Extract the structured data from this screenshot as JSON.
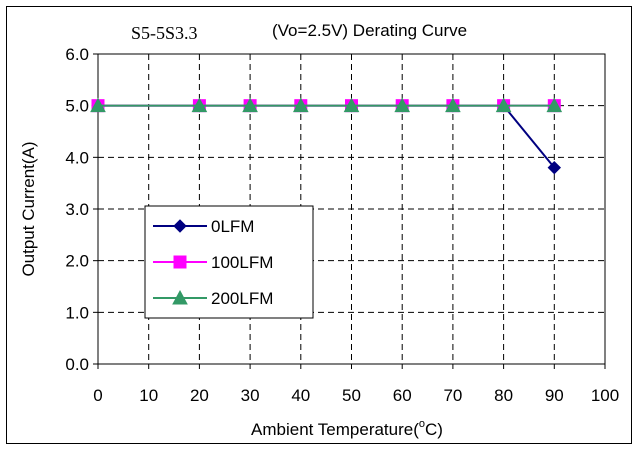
{
  "chart_data": {
    "type": "line",
    "title_left": "S5-5S3.3",
    "title_right": "(Vo=2.5V) Derating Curve",
    "xlabel": "Ambient Temperature(",
    "xlabel_degree": "o",
    "xlabel_unit": "C)",
    "ylabel": "Output Current(A)",
    "xlim": [
      0,
      100
    ],
    "ylim": [
      0,
      6
    ],
    "xticks": [
      "0",
      "10",
      "20",
      "30",
      "40",
      "50",
      "60",
      "70",
      "80",
      "90",
      "100"
    ],
    "yticks": [
      "0.0",
      "1.0",
      "2.0",
      "3.0",
      "4.0",
      "5.0",
      "6.0"
    ],
    "grid": true,
    "legend_position": "lower-left",
    "series": [
      {
        "name": "0LFM",
        "color": "#000080",
        "marker": "diamond",
        "x": [
          0,
          20,
          30,
          40,
          50,
          60,
          70,
          80,
          90
        ],
        "y": [
          5.0,
          5.0,
          5.0,
          5.0,
          5.0,
          5.0,
          5.0,
          5.0,
          3.8
        ]
      },
      {
        "name": "100LFM",
        "color": "#ff00ff",
        "marker": "square",
        "x": [
          0,
          20,
          30,
          40,
          50,
          60,
          70,
          80,
          90
        ],
        "y": [
          5.0,
          5.0,
          5.0,
          5.0,
          5.0,
          5.0,
          5.0,
          5.0,
          5.0
        ]
      },
      {
        "name": "200LFM",
        "color": "#339966",
        "marker": "triangle",
        "x": [
          0,
          20,
          30,
          40,
          50,
          60,
          70,
          80,
          90
        ],
        "y": [
          5.0,
          5.0,
          5.0,
          5.0,
          5.0,
          5.0,
          5.0,
          5.0,
          5.0
        ]
      }
    ]
  }
}
